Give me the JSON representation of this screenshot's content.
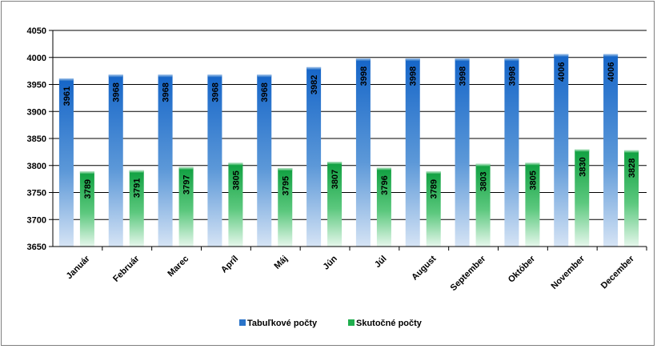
{
  "chart_data": {
    "type": "bar",
    "categories": [
      "Január",
      "Február",
      "Marec",
      "Apríl",
      "Máj",
      "Jún",
      "Júl",
      "August",
      "September",
      "Október",
      "November",
      "December"
    ],
    "series": [
      {
        "name": "Tabuľkové počty",
        "values": [
          3961,
          3968,
          3968,
          3968,
          3968,
          3982,
          3998,
          3998,
          3998,
          3998,
          4006,
          4006
        ],
        "color": "#1f6fc7"
      },
      {
        "name": "Skutočné počty",
        "values": [
          3789,
          3791,
          3797,
          3805,
          3795,
          3807,
          3796,
          3789,
          3803,
          3805,
          3830,
          3828
        ],
        "color": "#1fae4e"
      }
    ],
    "yticks": [
      "3650",
      "3700",
      "3750",
      "3800",
      "3850",
      "3900",
      "3950",
      "4000",
      "4050"
    ],
    "ylim": [
      3650,
      4050
    ],
    "grid": true,
    "legend_position": "bottom",
    "data_labels": "inside-end, rotated vertical"
  }
}
